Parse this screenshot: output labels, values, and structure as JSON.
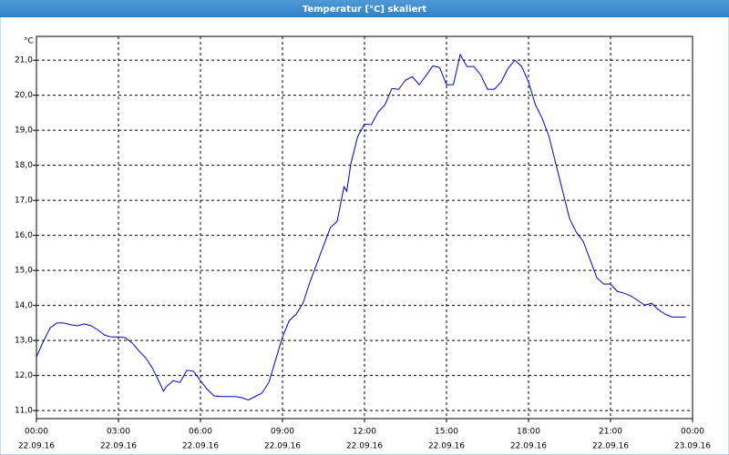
{
  "window_title": "Temperatur [°C] skaliert",
  "chart_data": {
    "type": "line",
    "y_unit": "°C",
    "color": "#0000c8",
    "grid": true,
    "x": [
      0,
      0.25,
      0.5,
      0.75,
      1,
      1.25,
      1.5,
      1.75,
      2,
      2.25,
      2.5,
      2.75,
      3,
      3.25,
      3.5,
      3.75,
      4,
      4.25,
      4.5,
      4.65,
      4.75,
      5,
      5.25,
      5.5,
      5.75,
      6,
      6.25,
      6.5,
      6.75,
      7,
      7.25,
      7.5,
      7.75,
      8,
      8.25,
      8.5,
      8.75,
      9,
      9.25,
      9.5,
      9.75,
      10,
      10.25,
      10.5,
      10.75,
      11,
      11.25,
      11.35,
      11.5,
      11.75,
      12,
      12.25,
      12.5,
      12.75,
      13,
      13.25,
      13.5,
      13.75,
      14,
      14.25,
      14.5,
      14.75,
      15,
      15.25,
      15.5,
      15.75,
      16,
      16.25,
      16.5,
      16.75,
      17,
      17.25,
      17.5,
      17.75,
      18,
      18.25,
      18.5,
      18.75,
      19,
      19.25,
      19.5,
      19.75,
      20,
      20.25,
      20.5,
      20.75,
      21,
      21.25,
      21.5,
      21.75,
      22,
      22.25,
      22.5,
      22.75,
      23,
      23.25,
      23.5,
      23.75
    ],
    "values": [
      12.53,
      12.97,
      13.36,
      13.5,
      13.5,
      13.45,
      13.42,
      13.47,
      13.42,
      13.3,
      13.15,
      13.1,
      13.1,
      13.08,
      12.93,
      12.7,
      12.5,
      12.2,
      11.8,
      11.55,
      11.68,
      11.85,
      11.8,
      12.15,
      12.12,
      11.85,
      11.6,
      11.42,
      11.4,
      11.4,
      11.4,
      11.37,
      11.3,
      11.4,
      11.5,
      11.8,
      12.45,
      13.1,
      13.57,
      13.75,
      14.06,
      14.66,
      15.18,
      15.7,
      16.22,
      16.4,
      17.39,
      17.26,
      18.04,
      18.82,
      19.18,
      19.16,
      19.52,
      19.73,
      20.19,
      20.17,
      20.43,
      20.53,
      20.3,
      20.56,
      20.84,
      20.79,
      20.3,
      20.3,
      21.16,
      20.82,
      20.82,
      20.58,
      20.17,
      20.17,
      20.38,
      20.77,
      21.0,
      20.82,
      20.38,
      19.73,
      19.34,
      18.82,
      18.04,
      17.26,
      16.48,
      16.09,
      15.83,
      15.31,
      14.79,
      14.61,
      14.61,
      14.4,
      14.35,
      14.27,
      14.14,
      14.01,
      14.06,
      13.88,
      13.75,
      13.67,
      13.67,
      13.67
    ],
    "xlim": [
      0,
      24
    ],
    "xticks": [
      {
        "value": 0,
        "label": "00:00",
        "date": "22.09.16"
      },
      {
        "value": 3,
        "label": "03:00",
        "date": "22.09.16"
      },
      {
        "value": 6,
        "label": "06:00",
        "date": "22.09.16"
      },
      {
        "value": 9,
        "label": "09:00",
        "date": "22.09.16"
      },
      {
        "value": 12,
        "label": "12:00",
        "date": "22.09.16"
      },
      {
        "value": 15,
        "label": "15:00",
        "date": "22.09.16"
      },
      {
        "value": 18,
        "label": "18:00",
        "date": "22.09.16"
      },
      {
        "value": 21,
        "label": "21:00",
        "date": "22.09.16"
      },
      {
        "value": 24,
        "label": "00:00",
        "date": "23.09.16"
      }
    ],
    "ylim": [
      10.77,
      21.68
    ],
    "yticks": [
      {
        "value": 11,
        "label": "11,0"
      },
      {
        "value": 12,
        "label": "12,0"
      },
      {
        "value": 13,
        "label": "13,0"
      },
      {
        "value": 14,
        "label": "14,0"
      },
      {
        "value": 15,
        "label": "15,0"
      },
      {
        "value": 16,
        "label": "16,0"
      },
      {
        "value": 17,
        "label": "17,0"
      },
      {
        "value": 18,
        "label": "18,0"
      },
      {
        "value": 19,
        "label": "19,0"
      },
      {
        "value": 20,
        "label": "20,0"
      },
      {
        "value": 21,
        "label": "21,0"
      }
    ]
  }
}
